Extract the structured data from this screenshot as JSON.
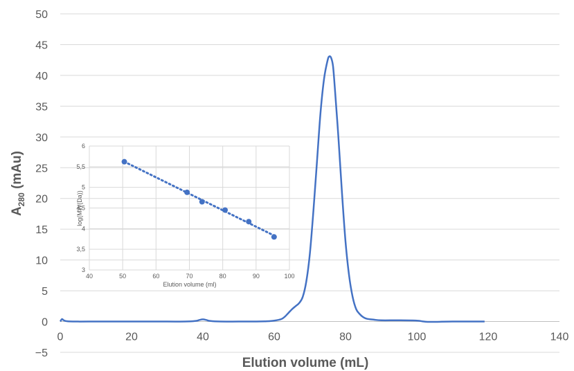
{
  "chart_data": [
    {
      "type": "line",
      "title": "",
      "xlabel": "Elution volume (mL)",
      "ylabel_main": "A",
      "ylabel_sub": "280",
      "ylabel_suffix": " (mAu)",
      "xlim": [
        0,
        140
      ],
      "ylim": [
        -5,
        50
      ],
      "xticks": [
        "0",
        "20",
        "40",
        "60",
        "80",
        "100",
        "120",
        "140"
      ],
      "yticks": [
        "−5",
        "0",
        "5",
        "10",
        "15",
        "20",
        "25",
        "30",
        "35",
        "40",
        "45",
        "50"
      ],
      "grid": "horizontal",
      "legend": "none",
      "color": "#4472C4",
      "series": [
        {
          "x": [
            0,
            0.5,
            1,
            2,
            5,
            10,
            20,
            30,
            35,
            38,
            39,
            40,
            41,
            42,
            45,
            50,
            55,
            58,
            60,
            62,
            63,
            64,
            65,
            66,
            67,
            68,
            69,
            70,
            71,
            72,
            73,
            74,
            75,
            75.5,
            76,
            76.5,
            77,
            78,
            79,
            80,
            81,
            82,
            83,
            84,
            85,
            86,
            88,
            90,
            95,
            100,
            102,
            104,
            110,
            115,
            119
          ],
          "y": [
            0,
            0.4,
            0.2,
            0.05,
            0,
            0,
            0,
            0,
            0,
            0.1,
            0.25,
            0.35,
            0.25,
            0.1,
            0,
            0,
            0,
            0.05,
            0.15,
            0.4,
            0.8,
            1.4,
            2.0,
            2.5,
            3.0,
            4.0,
            6.5,
            11,
            18,
            26,
            34,
            39.5,
            42.5,
            43.1,
            42.8,
            41.5,
            38,
            30,
            21,
            13,
            7.5,
            4,
            2,
            1.2,
            0.7,
            0.45,
            0.3,
            0.2,
            0.2,
            0.15,
            0,
            -0.05,
            0,
            0,
            0
          ]
        }
      ]
    },
    {
      "type": "scatter",
      "title": "",
      "xlabel": "Elution volume (ml)",
      "ylabel": "log(MW(Da))",
      "xlim": [
        40,
        100
      ],
      "ylim": [
        3,
        6
      ],
      "xticks": [
        "40",
        "50",
        "60",
        "70",
        "80",
        "90",
        "100"
      ],
      "yticks": [
        "3",
        "3,5",
        "4",
        "4,5",
        "5",
        "5,5",
        "6"
      ],
      "grid": "both",
      "legend": "none",
      "trendline": "linear, dotted",
      "color": "#4472C4",
      "series": [
        {
          "x": [
            50.5,
            69.3,
            73.8,
            80.7,
            87.8,
            95.4
          ],
          "y": [
            5.62,
            4.88,
            4.65,
            4.45,
            4.17,
            3.8
          ]
        }
      ]
    }
  ]
}
